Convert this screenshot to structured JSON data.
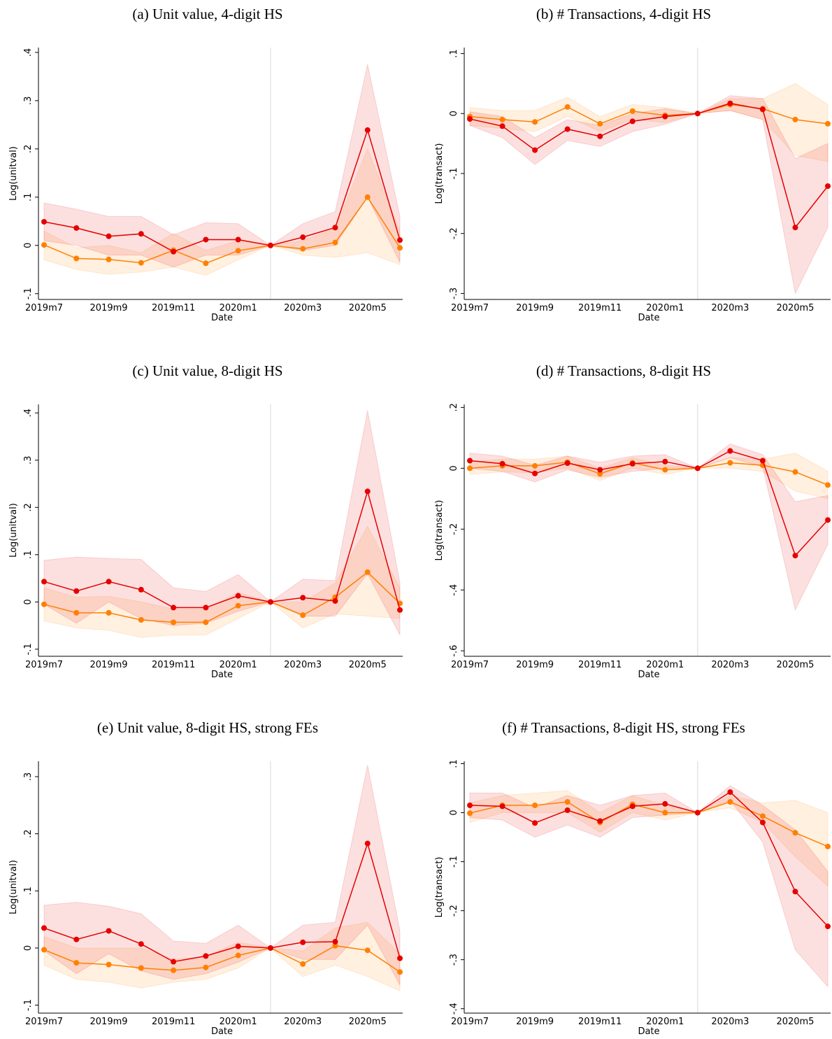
{
  "chart_data": [
    {
      "type": "line",
      "title": "(a) Unit value, 4-digit HS",
      "x_label": "Date",
      "y_label": "Log(unitval)",
      "categories": [
        "2019m7",
        null,
        "2019m9",
        null,
        "2019m11",
        null,
        "2020m1",
        null,
        "2020m3",
        null,
        "2020m5",
        null
      ],
      "ylim": [
        -0.112,
        0.41
      ],
      "yticks": [
        {
          "value": -0.1,
          "label": "-.1"
        },
        0,
        {
          "value": 0.1,
          "label": ".1"
        },
        {
          "value": 0.2,
          "label": ".2"
        },
        {
          "value": 0.3,
          "label": ".3"
        },
        {
          "value": 0.4,
          "label": ".4"
        }
      ],
      "series": [
        {
          "color": "#ff8000",
          "values": [
            0.001,
            -0.027,
            -0.029,
            -0.036,
            -0.01,
            -0.037,
            -0.011,
            0,
            -0.007,
            0.006,
            0.1,
            -0.005
          ],
          "lower": [
            -0.03,
            -0.05,
            -0.06,
            -0.055,
            -0.045,
            -0.062,
            -0.03,
            0,
            -0.02,
            -0.025,
            -0.015,
            -0.04
          ],
          "upper": [
            0.03,
            -0.005,
            0.0,
            -0.015,
            0.025,
            -0.01,
            0.01,
            0,
            0.01,
            0.035,
            0.2,
            0.03
          ]
        },
        {
          "color": "#e60000",
          "values": [
            0.049,
            0.036,
            0.019,
            0.024,
            -0.013,
            0.012,
            0.012,
            0,
            0.017,
            0.037,
            0.239,
            0.011
          ],
          "lower": [
            0.01,
            0.0,
            -0.02,
            -0.02,
            -0.045,
            -0.02,
            -0.02,
            0,
            -0.01,
            0.0,
            0.1,
            -0.035
          ],
          "upper": [
            0.088,
            0.075,
            0.06,
            0.06,
            0.022,
            0.047,
            0.045,
            0,
            0.045,
            0.07,
            0.375,
            0.06
          ]
        }
      ]
    },
    {
      "type": "line",
      "title": "(b) # Transactions, 4-digit HS",
      "x_label": "Date",
      "y_label": "Log(transact)",
      "categories": [
        "2019m7",
        null,
        "2019m9",
        null,
        "2019m11",
        null,
        "2020m1",
        null,
        "2020m3",
        null,
        "2020m5",
        null
      ],
      "ylim": [
        -0.31,
        0.11
      ],
      "yticks": [
        {
          "value": -0.3,
          "label": "-.3"
        },
        {
          "value": -0.2,
          "label": "-.2"
        },
        {
          "value": -0.1,
          "label": "-.1"
        },
        0,
        {
          "value": 0.1,
          "label": ".1"
        }
      ],
      "series": [
        {
          "color": "#ff8000",
          "values": [
            -0.005,
            -0.01,
            -0.014,
            0.011,
            -0.017,
            0.004,
            -0.003,
            0,
            0.015,
            0.008,
            -0.01,
            -0.017
          ],
          "lower": [
            -0.02,
            -0.025,
            -0.03,
            -0.005,
            -0.03,
            -0.01,
            -0.015,
            0,
            0.005,
            -0.01,
            -0.07,
            -0.08
          ],
          "upper": [
            0.01,
            0.005,
            0.005,
            0.027,
            -0.005,
            0.015,
            0.01,
            0,
            0.025,
            0.025,
            0.05,
            0.015
          ]
        },
        {
          "color": "#e60000",
          "values": [
            -0.009,
            -0.021,
            -0.061,
            -0.026,
            -0.038,
            -0.013,
            -0.005,
            0,
            0.017,
            0.007,
            -0.19,
            -0.121
          ],
          "lower": [
            -0.02,
            -0.04,
            -0.085,
            -0.045,
            -0.055,
            -0.03,
            -0.018,
            0,
            0.005,
            -0.01,
            -0.3,
            -0.19
          ],
          "upper": [
            0.003,
            -0.005,
            -0.04,
            -0.01,
            -0.02,
            0.0,
            0.008,
            0,
            0.03,
            0.025,
            -0.075,
            -0.05
          ]
        }
      ]
    },
    {
      "type": "line",
      "title": "(c) Unit value, 8-digit HS",
      "x_label": "Date",
      "y_label": "Log(unitval)",
      "categories": [
        "2019m7",
        null,
        "2019m9",
        null,
        "2019m11",
        null,
        "2020m1",
        null,
        "2020m3",
        null,
        "2020m5",
        null
      ],
      "ylim": [
        -0.115,
        0.418
      ],
      "yticks": [
        {
          "value": -0.1,
          "label": "-.1"
        },
        0,
        {
          "value": 0.1,
          "label": ".1"
        },
        {
          "value": 0.2,
          "label": ".2"
        },
        {
          "value": 0.3,
          "label": ".3"
        },
        {
          "value": 0.4,
          "label": ".4"
        }
      ],
      "series": [
        {
          "color": "#ff8000",
          "values": [
            -0.005,
            -0.023,
            -0.023,
            -0.038,
            -0.043,
            -0.043,
            -0.008,
            0,
            -0.028,
            0.01,
            0.063,
            -0.003
          ],
          "lower": [
            -0.04,
            -0.055,
            -0.06,
            -0.075,
            -0.07,
            -0.07,
            -0.035,
            0,
            -0.055,
            -0.025,
            -0.03,
            -0.035
          ],
          "upper": [
            0.03,
            0.01,
            0.012,
            0.0,
            -0.015,
            -0.015,
            0.02,
            0,
            0.0,
            0.04,
            0.16,
            0.03
          ]
        },
        {
          "color": "#e60000",
          "values": [
            0.043,
            0.023,
            0.043,
            0.026,
            -0.012,
            -0.012,
            0.013,
            0,
            0.009,
            0.002,
            0.234,
            -0.017
          ],
          "lower": [
            -0.005,
            -0.045,
            0.0,
            -0.035,
            -0.05,
            -0.045,
            -0.02,
            0,
            -0.03,
            -0.03,
            0.06,
            -0.07
          ],
          "upper": [
            0.088,
            0.095,
            0.092,
            0.09,
            0.03,
            0.022,
            0.058,
            0,
            0.048,
            0.045,
            0.405,
            0.04
          ]
        }
      ]
    },
    {
      "type": "line",
      "title": "(d) # Transactions, 8-digit HS",
      "x_label": "Date",
      "y_label": "Log(transact)",
      "categories": [
        "2019m7",
        null,
        "2019m9",
        null,
        "2019m11",
        null,
        "2020m1",
        null,
        "2020m3",
        null,
        "2020m5",
        null
      ],
      "ylim": [
        -0.618,
        0.21
      ],
      "yticks": [
        {
          "value": -0.6,
          "label": "-.6"
        },
        {
          "value": -0.4,
          "label": "-.4"
        },
        {
          "value": -0.2,
          "label": "-.2"
        },
        0,
        {
          "value": 0.2,
          "label": ".2"
        }
      ],
      "series": [
        {
          "color": "#ff8000",
          "values": [
            0.0,
            0.008,
            0.008,
            0.02,
            -0.018,
            0.018,
            -0.005,
            0,
            0.018,
            0.01,
            -0.012,
            -0.055
          ],
          "lower": [
            -0.02,
            -0.012,
            -0.015,
            0.0,
            -0.04,
            0.0,
            -0.02,
            0,
            0.0,
            -0.01,
            -0.075,
            -0.1
          ],
          "upper": [
            0.02,
            0.03,
            0.03,
            0.04,
            0.0,
            0.035,
            0.01,
            0,
            0.035,
            0.03,
            0.05,
            -0.01
          ]
        },
        {
          "color": "#e60000",
          "values": [
            0.025,
            0.015,
            -0.017,
            0.017,
            -0.005,
            0.015,
            0.022,
            0,
            0.057,
            0.025,
            -0.287,
            -0.17
          ],
          "lower": [
            0.0,
            -0.01,
            -0.045,
            -0.005,
            -0.03,
            -0.01,
            0.0,
            0,
            0.035,
            0.005,
            -0.465,
            -0.25
          ],
          "upper": [
            0.05,
            0.04,
            0.01,
            0.04,
            0.02,
            0.04,
            0.045,
            0,
            0.08,
            0.045,
            -0.11,
            -0.09
          ]
        }
      ]
    },
    {
      "type": "line",
      "title": "(e) Unit value, 8-digit HS, strong FEs",
      "x_label": "Date",
      "y_label": "Log(unitval)",
      "categories": [
        "2019m7",
        null,
        "2019m9",
        null,
        "2019m11",
        null,
        "2020m1",
        null,
        "2020m3",
        null,
        "2020m5",
        null
      ],
      "ylim": [
        -0.114,
        0.327
      ],
      "yticks": [
        {
          "value": -0.1,
          "label": "-.1"
        },
        0,
        {
          "value": 0.1,
          "label": ".1"
        },
        {
          "value": 0.2,
          "label": ".2"
        },
        {
          "value": 0.3,
          "label": ".3"
        }
      ],
      "series": [
        {
          "color": "#ff8000",
          "values": [
            -0.003,
            -0.026,
            -0.029,
            -0.035,
            -0.039,
            -0.034,
            -0.013,
            0,
            -0.028,
            0.004,
            -0.004,
            -0.042
          ],
          "lower": [
            -0.03,
            -0.055,
            -0.06,
            -0.07,
            -0.06,
            -0.055,
            -0.035,
            0,
            -0.05,
            -0.03,
            -0.05,
            -0.075
          ],
          "upper": [
            0.02,
            0.0,
            0.0,
            0.0,
            -0.02,
            -0.015,
            0.01,
            0,
            -0.005,
            0.035,
            0.045,
            -0.01
          ]
        },
        {
          "color": "#e60000",
          "values": [
            0.035,
            0.015,
            0.03,
            0.007,
            -0.024,
            -0.014,
            0.003,
            0,
            0.01,
            0.011,
            0.183,
            -0.018
          ],
          "lower": [
            -0.005,
            -0.045,
            -0.01,
            -0.04,
            -0.055,
            -0.045,
            -0.025,
            0,
            -0.02,
            -0.02,
            0.04,
            -0.065
          ],
          "upper": [
            0.075,
            0.08,
            0.073,
            0.06,
            0.012,
            0.008,
            0.04,
            0,
            0.04,
            0.045,
            0.32,
            0.03
          ]
        }
      ]
    },
    {
      "type": "line",
      "title": "(f) # Transactions, 8-digit HS, strong FEs",
      "x_label": "Date",
      "y_label": "Log(transact)",
      "categories": [
        "2019m7",
        null,
        "2019m9",
        null,
        "2019m11",
        null,
        "2020m1",
        null,
        "2020m3",
        null,
        "2020m5",
        null
      ],
      "ylim": [
        -0.409,
        0.105
      ],
      "yticks": [
        {
          "value": -0.4,
          "label": "-.4"
        },
        {
          "value": -0.3,
          "label": "-.3"
        },
        {
          "value": -0.2,
          "label": "-.2"
        },
        {
          "value": -0.1,
          "label": "-.1"
        },
        0,
        {
          "value": 0.1,
          "label": ".1"
        }
      ],
      "series": [
        {
          "color": "#ff8000",
          "values": [
            -0.001,
            0.015,
            0.015,
            0.022,
            -0.02,
            0.017,
            0.0,
            0,
            0.022,
            -0.007,
            -0.041,
            -0.069
          ],
          "lower": [
            -0.02,
            0.0,
            0.0,
            0.0,
            -0.04,
            0.0,
            -0.015,
            0,
            0.01,
            -0.02,
            -0.09,
            -0.15
          ],
          "upper": [
            0.02,
            0.035,
            0.04,
            0.045,
            0.0,
            0.035,
            0.015,
            0,
            0.035,
            0.02,
            0.025,
            0.0
          ]
        },
        {
          "color": "#e60000",
          "values": [
            0.015,
            0.013,
            -0.021,
            0.005,
            -0.017,
            0.013,
            0.018,
            0,
            0.042,
            -0.02,
            -0.161,
            -0.232
          ],
          "lower": [
            -0.01,
            -0.015,
            -0.05,
            -0.025,
            -0.05,
            -0.01,
            -0.005,
            0,
            0.025,
            -0.06,
            -0.28,
            -0.355
          ],
          "upper": [
            0.04,
            0.04,
            0.01,
            0.035,
            0.015,
            0.035,
            0.04,
            0,
            0.055,
            0.015,
            -0.035,
            -0.12
          ]
        }
      ]
    }
  ]
}
